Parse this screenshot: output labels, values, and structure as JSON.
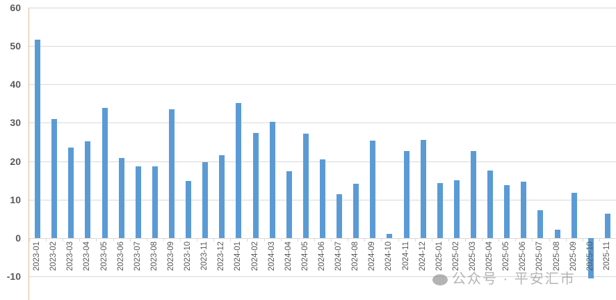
{
  "chart_data": {
    "type": "bar",
    "title": "",
    "xlabel": "",
    "ylabel": "",
    "ylim": [
      -10,
      60
    ],
    "yticks": [
      60,
      50,
      40,
      30,
      20,
      10,
      0,
      -10
    ],
    "grid": true,
    "legend": null,
    "bar_color": "#5b9bd5",
    "categories": [
      "2023-01",
      "2023-02",
      "2023-03",
      "2023-04",
      "2023-05",
      "2023-06",
      "2023-07",
      "2023-08",
      "2023-09",
      "2023-10",
      "2023-11",
      "2023-12",
      "2024-01",
      "2024-02",
      "2024-03",
      "2024-04",
      "2024-05",
      "2024-06",
      "2024-07",
      "2024-08",
      "2024-09",
      "2024-10",
      "2024-11",
      "2024-12",
      "2025-01",
      "2025-02",
      "2025-03",
      "2025-04",
      "2025-05",
      "2025-06",
      "2025-07",
      "2025-08",
      "2025-09",
      "2025-10",
      "2025-11"
    ],
    "values": [
      51.6,
      31.0,
      23.6,
      25.2,
      33.9,
      20.8,
      18.7,
      18.7,
      33.5,
      14.9,
      19.8,
      21.6,
      35.2,
      27.4,
      30.3,
      17.4,
      27.2,
      20.5,
      11.4,
      14.1,
      25.4,
      1.1,
      22.6,
      25.5,
      14.3,
      15.0,
      22.6,
      17.6,
      13.8,
      14.7,
      7.2,
      2.2,
      11.8,
      -10.5,
      6.3
    ]
  },
  "watermark": {
    "icon": "wechat-icon",
    "text": "公众号 · 平安汇市"
  }
}
